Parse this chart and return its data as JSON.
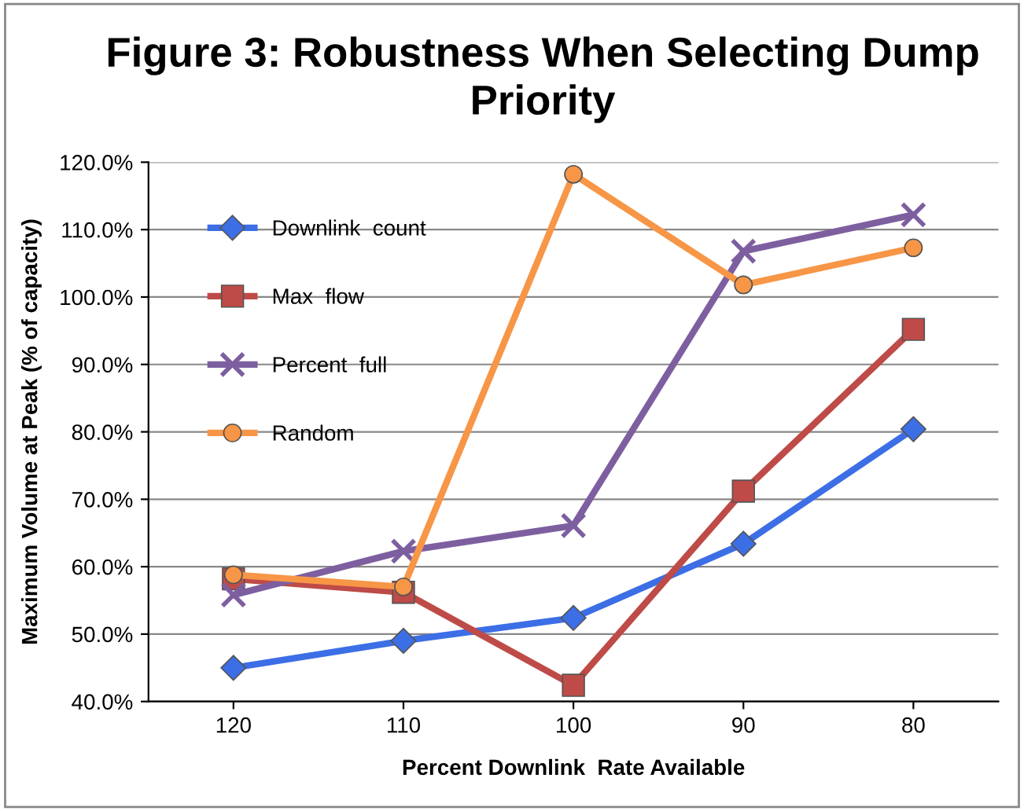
{
  "chart_data": {
    "type": "line",
    "title": "Figure 3: Robustness When Selecting Dump\nPriority",
    "xlabel": "Percent Downlink  Rate Available",
    "ylabel": "Maximum Volume at Peak (% of capacity)",
    "categories": [
      "120",
      "110",
      "100",
      "90",
      "80"
    ],
    "series": [
      {
        "name": "Downlink  count",
        "color": "#3c6ee6",
        "marker": "diamond",
        "values": [
          45.0,
          49.0,
          52.4,
          63.4,
          80.4
        ]
      },
      {
        "name": "Max  flow",
        "color": "#be4b48",
        "marker": "square",
        "values": [
          58.2,
          56.2,
          42.4,
          71.2,
          95.2
        ]
      },
      {
        "name": "Percent  full",
        "color": "#7d5fa0",
        "marker": "cross",
        "values": [
          55.8,
          62.3,
          66.1,
          106.8,
          112.2
        ]
      },
      {
        "name": "Random",
        "color": "#f79646",
        "marker": "circle",
        "values": [
          58.8,
          57.0,
          118.2,
          101.8,
          107.3
        ]
      }
    ],
    "ylim": [
      40,
      120
    ],
    "yticks": [
      {
        "value": 40,
        "label": "40.0%"
      },
      {
        "value": 50,
        "label": "50.0%"
      },
      {
        "value": 60,
        "label": "60.0%"
      },
      {
        "value": 70,
        "label": "70.0%"
      },
      {
        "value": 80,
        "label": "80.0%"
      },
      {
        "value": 90,
        "label": "90.0%"
      },
      {
        "value": 100,
        "label": "100.0%"
      },
      {
        "value": 110,
        "label": "110.0%"
      },
      {
        "value": 120,
        "label": "120.0%"
      }
    ],
    "grid": "y",
    "legend": "top left",
    "line_style": "solid"
  }
}
